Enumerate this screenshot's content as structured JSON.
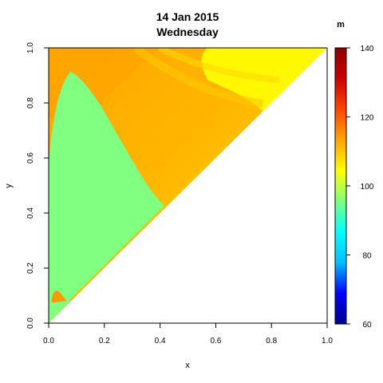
{
  "chart_data": {
    "type": "heatmap",
    "title": "14 Jan 2015",
    "subtitle": "Wednesday",
    "xlabel": "x",
    "ylabel": "y",
    "xlim": [
      0,
      1
    ],
    "ylim": [
      0,
      1
    ],
    "x_ticks": [
      0.0,
      0.2,
      0.4,
      0.6,
      0.8,
      1.0
    ],
    "x_tick_labels": [
      "0.0",
      "0.2",
      "0.4",
      "0.6",
      "0.8",
      "1.0"
    ],
    "y_ticks": [
      0.0,
      0.2,
      0.4,
      0.6,
      0.8,
      1.0
    ],
    "y_tick_labels": [
      "0.0",
      "0.2",
      "0.4",
      "0.6",
      "0.8",
      "1.0"
    ],
    "domain": "upper triangle (y >= x)",
    "grid": false,
    "colorbar": {
      "unit": "m",
      "range": [
        60,
        140
      ],
      "ticks": [
        60,
        80,
        100,
        120,
        140
      ],
      "tick_labels": [
        "60",
        "80",
        "100",
        "120",
        "140"
      ],
      "colors": [
        "#00008b",
        "#0000ff",
        "#00bfff",
        "#00ffff",
        "#7fff7f",
        "#ffff00",
        "#ffa500",
        "#ff4500",
        "#cc0000",
        "#8b0000"
      ]
    },
    "regions": [
      {
        "label": "background field",
        "value": 115,
        "color": "#ffb800"
      },
      {
        "label": "green region",
        "value": 101,
        "color": "#80ff80"
      },
      {
        "label": "upper-left orange band",
        "value": 118,
        "color": "#ffa500"
      },
      {
        "label": "upper-right yellow band",
        "value": 111,
        "color": "#ffff00"
      },
      {
        "label": "lower-left narrow band",
        "value": 119,
        "color": "#ff9a00"
      }
    ]
  }
}
